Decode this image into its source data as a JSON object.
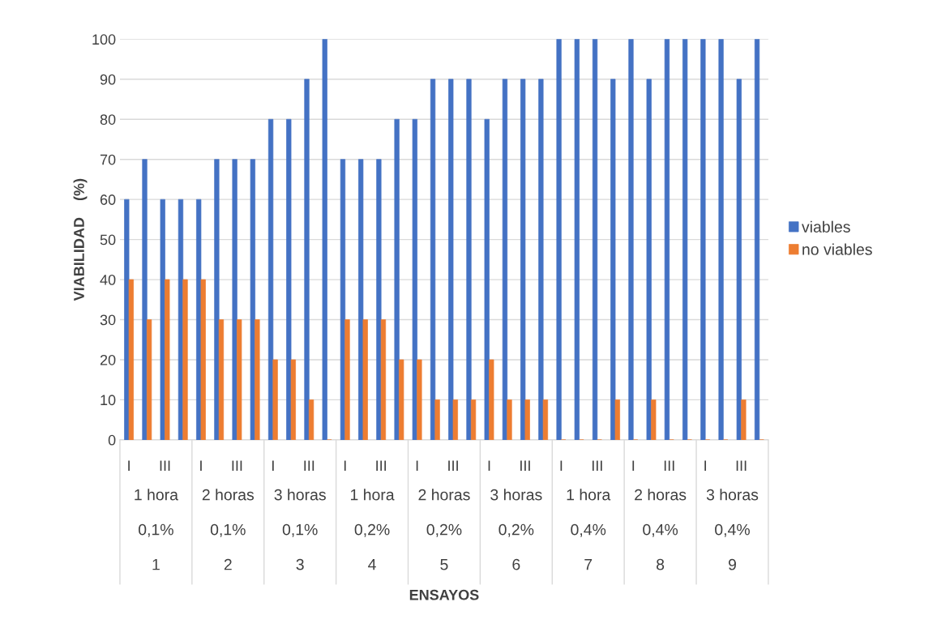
{
  "chart_data": {
    "type": "bar",
    "ylabel": "VIABILIDAD    (%)",
    "categories": [
      "I",
      null,
      "III",
      null,
      "I",
      null,
      "III",
      null,
      "I",
      null,
      "III",
      null,
      "I",
      null,
      "III",
      null,
      "I",
      null,
      "III",
      null,
      "I",
      null,
      "III",
      null,
      "I",
      null,
      "III",
      null,
      "I",
      null,
      "III",
      null,
      "I",
      null,
      "III",
      null
    ],
    "series": [
      {
        "name": "viables",
        "color": "#4472c4",
        "values": [
          60,
          70,
          60,
          60,
          60,
          70,
          70,
          70,
          80,
          80,
          90,
          100,
          70,
          70,
          70,
          80,
          80,
          90,
          90,
          90,
          80,
          90,
          90,
          90,
          100,
          100,
          100,
          90,
          100,
          90,
          100,
          100,
          100,
          100,
          90,
          100
        ]
      },
      {
        "name": "no viables",
        "color": "#ed7d31",
        "values": [
          40,
          30,
          40,
          40,
          40,
          30,
          30,
          30,
          20,
          20,
          10,
          0,
          30,
          30,
          30,
          20,
          20,
          10,
          10,
          10,
          20,
          10,
          10,
          10,
          0,
          0,
          0,
          10,
          0,
          10,
          0,
          0,
          0,
          0,
          10,
          0
        ]
      }
    ],
    "annotations": [
      "1 hora",
      "2 horas",
      "3 horas",
      "1 hora",
      "2 horas",
      "3 horas",
      "1 hora",
      "2 horas",
      "3 horas",
      "0,1%",
      "0,1%",
      "0,1%",
      "0,2%",
      "0,2%",
      "0,2%",
      "0,4%",
      "0,4%",
      "0,4%",
      "1",
      "2",
      "3",
      "4",
      "5",
      "6",
      "7",
      "8",
      "9",
      "ENSAYOS"
    ],
    "ylim": [
      0,
      100
    ],
    "yticks": [
      0,
      10,
      20,
      30,
      40,
      50,
      60,
      70,
      80,
      90,
      100
    ],
    "grid": "y",
    "legend": "right"
  }
}
